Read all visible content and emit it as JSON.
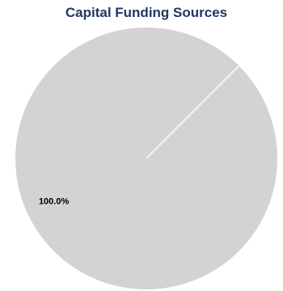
{
  "chart_data": {
    "type": "pie",
    "title": "Capital Funding Sources",
    "categories": [
      ""
    ],
    "values": [
      100.0
    ],
    "data_labels": [
      "100.0%"
    ],
    "colors": [
      "#d3d3d3"
    ],
    "title_color": "#1f3864",
    "separator_color": "#ffffff",
    "legend": "none"
  }
}
